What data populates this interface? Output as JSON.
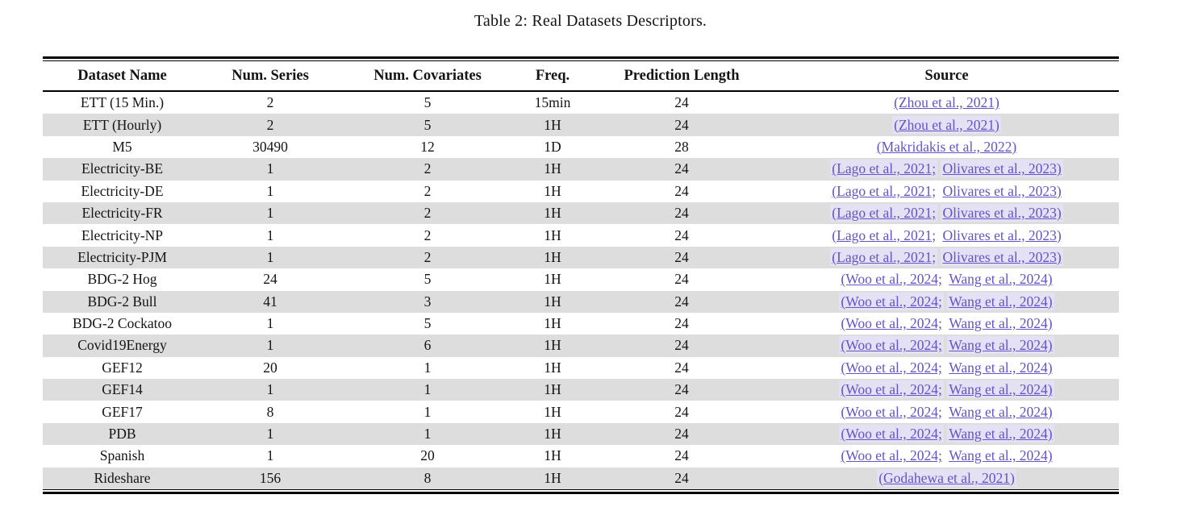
{
  "title": "Table 2: Real Datasets Descriptors.",
  "colors": {
    "link": "#6254c4",
    "link_highlight": "#e4e1f5",
    "row_stripe": "#dddddd",
    "rule": "#000000",
    "background": "#ffffff"
  },
  "table": {
    "headers": [
      "Dataset Name",
      "Num. Series",
      "Num. Covariates",
      "Freq.",
      "Prediction Length",
      "Source"
    ],
    "rows": [
      {
        "name": "ETT (15 Min.)",
        "num_series": "2",
        "num_covariates": "5",
        "freq": "15min",
        "pred_len": "24",
        "sources": [
          "(Zhou et al., 2021)"
        ]
      },
      {
        "name": "ETT (Hourly)",
        "num_series": "2",
        "num_covariates": "5",
        "freq": "1H",
        "pred_len": "24",
        "sources": [
          "(Zhou et al., 2021)"
        ]
      },
      {
        "name": "M5",
        "num_series": "30490",
        "num_covariates": "12",
        "freq": "1D",
        "pred_len": "28",
        "sources": [
          "(Makridakis et al., 2022)"
        ]
      },
      {
        "name": "Electricity-BE",
        "num_series": "1",
        "num_covariates": "2",
        "freq": "1H",
        "pred_len": "24",
        "sources": [
          "(Lago et al., 2021;",
          "Olivares et al., 2023)"
        ]
      },
      {
        "name": "Electricity-DE",
        "num_series": "1",
        "num_covariates": "2",
        "freq": "1H",
        "pred_len": "24",
        "sources": [
          "(Lago et al., 2021;",
          "Olivares et al., 2023)"
        ]
      },
      {
        "name": "Electricity-FR",
        "num_series": "1",
        "num_covariates": "2",
        "freq": "1H",
        "pred_len": "24",
        "sources": [
          "(Lago et al., 2021;",
          "Olivares et al., 2023)"
        ]
      },
      {
        "name": "Electricity-NP",
        "num_series": "1",
        "num_covariates": "2",
        "freq": "1H",
        "pred_len": "24",
        "sources": [
          "(Lago et al., 2021;",
          "Olivares et al., 2023)"
        ]
      },
      {
        "name": "Electricity-PJM",
        "num_series": "1",
        "num_covariates": "2",
        "freq": "1H",
        "pred_len": "24",
        "sources": [
          "(Lago et al., 2021;",
          "Olivares et al., 2023)"
        ]
      },
      {
        "name": "BDG-2 Hog",
        "num_series": "24",
        "num_covariates": "5",
        "freq": "1H",
        "pred_len": "24",
        "sources": [
          "(Woo et al., 2024;",
          "Wang et al., 2024)"
        ]
      },
      {
        "name": "BDG-2 Bull",
        "num_series": "41",
        "num_covariates": "3",
        "freq": "1H",
        "pred_len": "24",
        "sources": [
          "(Woo et al., 2024;",
          "Wang et al., 2024)"
        ]
      },
      {
        "name": "BDG-2 Cockatoo",
        "num_series": "1",
        "num_covariates": "5",
        "freq": "1H",
        "pred_len": "24",
        "sources": [
          "(Woo et al., 2024;",
          "Wang et al., 2024)"
        ]
      },
      {
        "name": "Covid19Energy",
        "num_series": "1",
        "num_covariates": "6",
        "freq": "1H",
        "pred_len": "24",
        "sources": [
          "(Woo et al., 2024;",
          "Wang et al., 2024)"
        ]
      },
      {
        "name": "GEF12",
        "num_series": "20",
        "num_covariates": "1",
        "freq": "1H",
        "pred_len": "24",
        "sources": [
          "(Woo et al., 2024;",
          "Wang et al., 2024)"
        ]
      },
      {
        "name": "GEF14",
        "num_series": "1",
        "num_covariates": "1",
        "freq": "1H",
        "pred_len": "24",
        "sources": [
          "(Woo et al., 2024;",
          "Wang et al., 2024)"
        ]
      },
      {
        "name": "GEF17",
        "num_series": "8",
        "num_covariates": "1",
        "freq": "1H",
        "pred_len": "24",
        "sources": [
          "(Woo et al., 2024;",
          "Wang et al., 2024)"
        ]
      },
      {
        "name": "PDB",
        "num_series": "1",
        "num_covariates": "1",
        "freq": "1H",
        "pred_len": "24",
        "sources": [
          "(Woo et al., 2024;",
          "Wang et al., 2024)"
        ]
      },
      {
        "name": "Spanish",
        "num_series": "1",
        "num_covariates": "20",
        "freq": "1H",
        "pred_len": "24",
        "sources": [
          "(Woo et al., 2024;",
          "Wang et al., 2024)"
        ]
      },
      {
        "name": "Rideshare",
        "num_series": "156",
        "num_covariates": "8",
        "freq": "1H",
        "pred_len": "24",
        "sources": [
          "(Godahewa et al., 2021)"
        ]
      }
    ]
  }
}
